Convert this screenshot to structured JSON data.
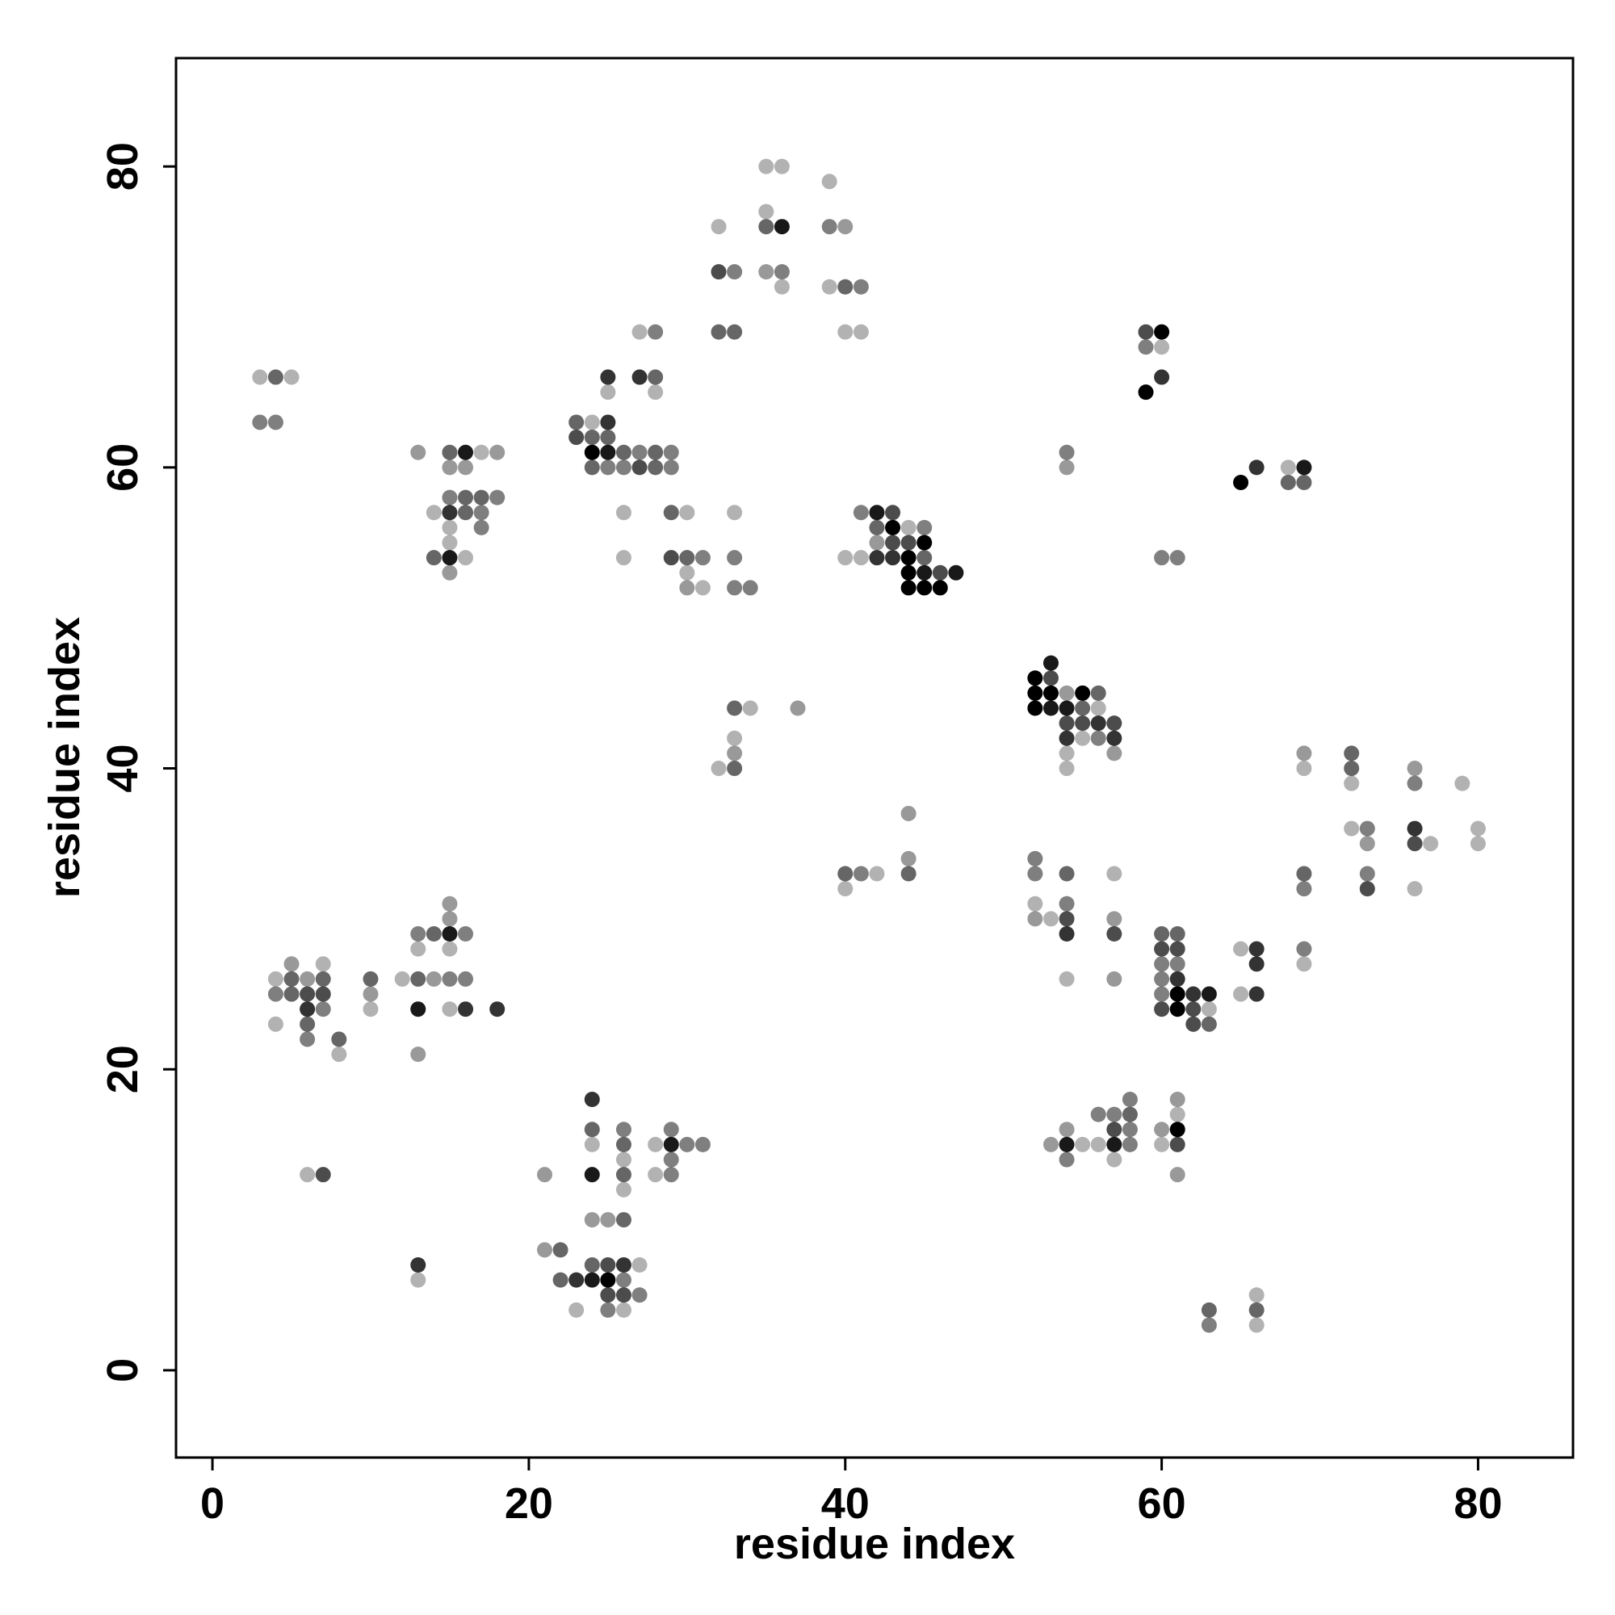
{
  "chart_data": {
    "type": "scatter",
    "title": "",
    "xlabel": "residue index",
    "ylabel": "residue index",
    "xlim": [
      -2.3,
      86
    ],
    "ylim": [
      -5.8,
      87.2
    ],
    "xticks": [
      0,
      20,
      40,
      60,
      80
    ],
    "yticks": [
      0,
      20,
      40,
      60,
      80
    ],
    "grid": false,
    "legend": "none",
    "marker_color": "#000000",
    "points": [
      [
        3,
        66,
        0.3
      ],
      [
        4,
        66,
        0.6
      ],
      [
        5,
        66,
        0.3
      ],
      [
        3,
        63,
        0.5
      ],
      [
        4,
        63,
        0.5
      ],
      [
        13,
        61,
        0.4
      ],
      [
        15,
        61,
        0.6
      ],
      [
        16,
        61,
        0.9
      ],
      [
        17,
        61,
        0.3
      ],
      [
        18,
        61,
        0.4
      ],
      [
        15,
        60,
        0.4
      ],
      [
        16,
        60,
        0.4
      ],
      [
        15,
        58,
        0.5
      ],
      [
        16,
        58,
        0.6
      ],
      [
        17,
        58,
        0.6
      ],
      [
        18,
        58,
        0.5
      ],
      [
        14,
        57,
        0.3
      ],
      [
        15,
        57,
        0.8
      ],
      [
        16,
        57,
        0.6
      ],
      [
        17,
        57,
        0.5
      ],
      [
        15,
        56,
        0.3
      ],
      [
        17,
        56,
        0.5
      ],
      [
        15,
        55,
        0.3
      ],
      [
        14,
        54,
        0.6
      ],
      [
        15,
        54,
        0.9
      ],
      [
        16,
        54,
        0.3
      ],
      [
        15,
        53,
        0.4
      ],
      [
        23,
        63,
        0.6
      ],
      [
        24,
        63,
        0.3
      ],
      [
        25,
        63,
        0.8
      ],
      [
        23,
        62,
        0.7
      ],
      [
        24,
        62,
        0.6
      ],
      [
        25,
        62,
        0.6
      ],
      [
        24,
        61,
        1.0
      ],
      [
        25,
        61,
        0.9
      ],
      [
        26,
        61,
        0.6
      ],
      [
        27,
        61,
        0.5
      ],
      [
        28,
        61,
        0.6
      ],
      [
        29,
        61,
        0.5
      ],
      [
        24,
        60,
        0.6
      ],
      [
        25,
        60,
        0.5
      ],
      [
        26,
        60,
        0.5
      ],
      [
        27,
        60,
        0.7
      ],
      [
        28,
        60,
        0.6
      ],
      [
        29,
        60,
        0.5
      ],
      [
        25,
        66,
        0.8
      ],
      [
        27,
        66,
        0.8
      ],
      [
        28,
        66,
        0.6
      ],
      [
        25,
        65,
        0.3
      ],
      [
        28,
        65,
        0.3
      ],
      [
        27,
        69,
        0.3
      ],
      [
        28,
        69,
        0.5
      ],
      [
        26,
        57,
        0.3
      ],
      [
        29,
        57,
        0.6
      ],
      [
        30,
        57,
        0.3
      ],
      [
        33,
        57,
        0.3
      ],
      [
        26,
        54,
        0.3
      ],
      [
        29,
        54,
        0.7
      ],
      [
        30,
        54,
        0.6
      ],
      [
        31,
        54,
        0.5
      ],
      [
        33,
        54,
        0.5
      ],
      [
        30,
        53,
        0.3
      ],
      [
        30,
        52,
        0.4
      ],
      [
        31,
        52,
        0.3
      ],
      [
        33,
        52,
        0.5
      ],
      [
        34,
        52,
        0.5
      ],
      [
        32,
        76,
        0.3
      ],
      [
        35,
        80,
        0.3
      ],
      [
        36,
        80,
        0.3
      ],
      [
        35,
        77,
        0.3
      ],
      [
        35,
        76,
        0.6
      ],
      [
        36,
        76,
        0.9
      ],
      [
        39,
        79,
        0.3
      ],
      [
        39,
        76,
        0.5
      ],
      [
        40,
        76,
        0.4
      ],
      [
        32,
        73,
        0.7
      ],
      [
        33,
        73,
        0.5
      ],
      [
        35,
        73,
        0.4
      ],
      [
        36,
        73,
        0.5
      ],
      [
        36,
        72,
        0.3
      ],
      [
        39,
        72,
        0.3
      ],
      [
        40,
        72,
        0.6
      ],
      [
        41,
        72,
        0.5
      ],
      [
        32,
        69,
        0.6
      ],
      [
        33,
        69,
        0.6
      ],
      [
        40,
        69,
        0.3
      ],
      [
        41,
        69,
        0.3
      ],
      [
        41,
        57,
        0.5
      ],
      [
        42,
        57,
        0.9
      ],
      [
        43,
        57,
        0.7
      ],
      [
        42,
        56,
        0.6
      ],
      [
        43,
        56,
        1.0
      ],
      [
        44,
        56,
        0.3
      ],
      [
        45,
        56,
        0.5
      ],
      [
        42,
        55,
        0.4
      ],
      [
        43,
        55,
        0.7
      ],
      [
        44,
        55,
        0.7
      ],
      [
        45,
        55,
        1.0
      ],
      [
        40,
        54,
        0.3
      ],
      [
        41,
        54,
        0.3
      ],
      [
        42,
        54,
        0.8
      ],
      [
        43,
        54,
        0.8
      ],
      [
        44,
        54,
        1.0
      ],
      [
        45,
        54,
        0.6
      ],
      [
        44,
        53,
        1.0
      ],
      [
        45,
        53,
        0.9
      ],
      [
        46,
        53,
        0.7
      ],
      [
        47,
        53,
        0.9
      ],
      [
        44,
        52,
        1.0
      ],
      [
        45,
        52,
        1.0
      ],
      [
        46,
        52,
        1.0
      ],
      [
        33,
        44,
        0.6
      ],
      [
        34,
        44,
        0.3
      ],
      [
        37,
        44,
        0.4
      ],
      [
        33,
        42,
        0.3
      ],
      [
        33,
        41,
        0.4
      ],
      [
        32,
        40,
        0.3
      ],
      [
        33,
        40,
        0.6
      ],
      [
        54,
        61,
        0.5
      ],
      [
        54,
        60,
        0.4
      ],
      [
        59,
        69,
        0.7
      ],
      [
        60,
        69,
        1.0
      ],
      [
        59,
        68,
        0.5
      ],
      [
        60,
        68,
        0.3
      ],
      [
        59,
        65,
        1.0
      ],
      [
        60,
        66,
        0.8
      ],
      [
        65,
        59,
        1.0
      ],
      [
        66,
        60,
        0.8
      ],
      [
        68,
        60,
        0.3
      ],
      [
        69,
        60,
        0.9
      ],
      [
        68,
        59,
        0.6
      ],
      [
        69,
        59,
        0.6
      ],
      [
        60,
        54,
        0.5
      ],
      [
        61,
        54,
        0.5
      ],
      [
        53,
        47,
        0.9
      ],
      [
        52,
        46,
        1.0
      ],
      [
        53,
        46,
        0.7
      ],
      [
        52,
        45,
        1.0
      ],
      [
        53,
        45,
        1.0
      ],
      [
        54,
        45,
        0.4
      ],
      [
        55,
        45,
        1.0
      ],
      [
        56,
        45,
        0.6
      ],
      [
        52,
        44,
        1.0
      ],
      [
        53,
        44,
        0.9
      ],
      [
        54,
        44,
        0.9
      ],
      [
        55,
        44,
        0.6
      ],
      [
        56,
        44,
        0.3
      ],
      [
        54,
        43,
        0.7
      ],
      [
        55,
        43,
        0.7
      ],
      [
        56,
        43,
        0.8
      ],
      [
        57,
        43,
        0.7
      ],
      [
        54,
        42,
        0.8
      ],
      [
        55,
        42,
        0.3
      ],
      [
        56,
        42,
        0.5
      ],
      [
        57,
        42,
        0.8
      ],
      [
        54,
        41,
        0.3
      ],
      [
        57,
        41,
        0.4
      ],
      [
        54,
        40,
        0.3
      ],
      [
        69,
        41,
        0.4
      ],
      [
        72,
        41,
        0.6
      ],
      [
        69,
        40,
        0.3
      ],
      [
        72,
        40,
        0.6
      ],
      [
        76,
        40,
        0.4
      ],
      [
        72,
        39,
        0.3
      ],
      [
        76,
        39,
        0.5
      ],
      [
        79,
        39,
        0.3
      ],
      [
        72,
        36,
        0.3
      ],
      [
        73,
        36,
        0.5
      ],
      [
        76,
        36,
        0.8
      ],
      [
        80,
        36,
        0.3
      ],
      [
        73,
        35,
        0.4
      ],
      [
        76,
        35,
        0.7
      ],
      [
        77,
        35,
        0.3
      ],
      [
        80,
        35,
        0.3
      ],
      [
        44,
        37,
        0.4
      ],
      [
        44,
        34,
        0.4
      ],
      [
        40,
        33,
        0.6
      ],
      [
        41,
        33,
        0.5
      ],
      [
        42,
        33,
        0.3
      ],
      [
        44,
        33,
        0.6
      ],
      [
        40,
        32,
        0.3
      ],
      [
        69,
        33,
        0.6
      ],
      [
        73,
        33,
        0.5
      ],
      [
        69,
        32,
        0.5
      ],
      [
        73,
        32,
        0.7
      ],
      [
        76,
        32,
        0.3
      ],
      [
        52,
        34,
        0.5
      ],
      [
        52,
        33,
        0.5
      ],
      [
        54,
        33,
        0.6
      ],
      [
        57,
        33,
        0.3
      ],
      [
        52,
        31,
        0.3
      ],
      [
        54,
        31,
        0.5
      ],
      [
        52,
        30,
        0.4
      ],
      [
        53,
        30,
        0.3
      ],
      [
        54,
        30,
        0.7
      ],
      [
        57,
        30,
        0.4
      ],
      [
        54,
        29,
        0.8
      ],
      [
        57,
        29,
        0.7
      ],
      [
        60,
        29,
        0.6
      ],
      [
        61,
        29,
        0.6
      ],
      [
        60,
        28,
        0.7
      ],
      [
        61,
        28,
        0.7
      ],
      [
        60,
        27,
        0.5
      ],
      [
        61,
        27,
        0.5
      ],
      [
        60,
        26,
        0.5
      ],
      [
        61,
        26,
        0.8
      ],
      [
        60,
        25,
        0.5
      ],
      [
        61,
        25,
        1.0
      ],
      [
        62,
        25,
        0.8
      ],
      [
        63,
        25,
        0.9
      ],
      [
        60,
        24,
        0.7
      ],
      [
        61,
        24,
        1.0
      ],
      [
        62,
        24,
        0.7
      ],
      [
        63,
        24,
        0.3
      ],
      [
        62,
        23,
        0.7
      ],
      [
        63,
        23,
        0.6
      ],
      [
        54,
        26,
        0.3
      ],
      [
        57,
        26,
        0.4
      ],
      [
        65,
        28,
        0.3
      ],
      [
        66,
        28,
        0.8
      ],
      [
        66,
        27,
        0.8
      ],
      [
        65,
        25,
        0.3
      ],
      [
        66,
        25,
        0.8
      ],
      [
        69,
        28,
        0.5
      ],
      [
        69,
        27,
        0.3
      ],
      [
        4,
        26,
        0.3
      ],
      [
        5,
        27,
        0.4
      ],
      [
        7,
        27,
        0.3
      ],
      [
        5,
        26,
        0.6
      ],
      [
        6,
        26,
        0.4
      ],
      [
        7,
        26,
        0.6
      ],
      [
        10,
        26,
        0.6
      ],
      [
        4,
        25,
        0.5
      ],
      [
        5,
        25,
        0.6
      ],
      [
        6,
        25,
        0.7
      ],
      [
        7,
        25,
        0.7
      ],
      [
        10,
        25,
        0.4
      ],
      [
        6,
        24,
        0.8
      ],
      [
        7,
        24,
        0.5
      ],
      [
        10,
        24,
        0.3
      ],
      [
        6,
        23,
        0.6
      ],
      [
        4,
        23,
        0.3
      ],
      [
        6,
        22,
        0.5
      ],
      [
        8,
        22,
        0.6
      ],
      [
        8,
        21,
        0.3
      ],
      [
        15,
        31,
        0.4
      ],
      [
        15,
        30,
        0.4
      ],
      [
        13,
        29,
        0.5
      ],
      [
        14,
        29,
        0.6
      ],
      [
        15,
        29,
        0.9
      ],
      [
        16,
        29,
        0.5
      ],
      [
        13,
        28,
        0.3
      ],
      [
        15,
        28,
        0.3
      ],
      [
        12,
        26,
        0.3
      ],
      [
        13,
        26,
        0.6
      ],
      [
        14,
        26,
        0.4
      ],
      [
        15,
        26,
        0.5
      ],
      [
        16,
        26,
        0.5
      ],
      [
        13,
        24,
        0.9
      ],
      [
        15,
        24,
        0.3
      ],
      [
        16,
        24,
        0.8
      ],
      [
        18,
        24,
        0.8
      ],
      [
        13,
        21,
        0.4
      ],
      [
        6,
        13,
        0.3
      ],
      [
        7,
        13,
        0.7
      ],
      [
        24,
        18,
        0.8
      ],
      [
        24,
        16,
        0.6
      ],
      [
        26,
        16,
        0.5
      ],
      [
        29,
        16,
        0.5
      ],
      [
        24,
        15,
        0.3
      ],
      [
        26,
        15,
        0.6
      ],
      [
        28,
        15,
        0.3
      ],
      [
        29,
        15,
        0.9
      ],
      [
        30,
        15,
        0.5
      ],
      [
        31,
        15,
        0.5
      ],
      [
        26,
        14,
        0.3
      ],
      [
        29,
        14,
        0.5
      ],
      [
        21,
        13,
        0.4
      ],
      [
        24,
        13,
        0.9
      ],
      [
        26,
        13,
        0.6
      ],
      [
        28,
        13,
        0.3
      ],
      [
        29,
        13,
        0.5
      ],
      [
        26,
        12,
        0.3
      ],
      [
        24,
        10,
        0.4
      ],
      [
        25,
        10,
        0.4
      ],
      [
        26,
        10,
        0.6
      ],
      [
        21,
        8,
        0.4
      ],
      [
        22,
        8,
        0.6
      ],
      [
        24,
        7,
        0.6
      ],
      [
        25,
        7,
        0.7
      ],
      [
        26,
        7,
        0.8
      ],
      [
        27,
        7,
        0.3
      ],
      [
        22,
        6,
        0.6
      ],
      [
        23,
        6,
        0.8
      ],
      [
        24,
        6,
        0.9
      ],
      [
        25,
        6,
        1.0
      ],
      [
        26,
        6,
        0.5
      ],
      [
        25,
        5,
        0.7
      ],
      [
        26,
        5,
        0.7
      ],
      [
        27,
        5,
        0.5
      ],
      [
        23,
        4,
        0.3
      ],
      [
        25,
        4,
        0.5
      ],
      [
        26,
        4,
        0.3
      ],
      [
        13,
        7,
        0.8
      ],
      [
        13,
        6,
        0.3
      ],
      [
        54,
        16,
        0.4
      ],
      [
        56,
        17,
        0.5
      ],
      [
        57,
        17,
        0.5
      ],
      [
        58,
        17,
        0.6
      ],
      [
        58,
        18,
        0.5
      ],
      [
        53,
        15,
        0.4
      ],
      [
        54,
        15,
        0.9
      ],
      [
        55,
        15,
        0.3
      ],
      [
        56,
        15,
        0.3
      ],
      [
        57,
        15,
        0.9
      ],
      [
        58,
        15,
        0.5
      ],
      [
        54,
        14,
        0.5
      ],
      [
        57,
        14,
        0.3
      ],
      [
        57,
        16,
        0.7
      ],
      [
        58,
        16,
        0.5
      ],
      [
        61,
        18,
        0.4
      ],
      [
        61,
        17,
        0.3
      ],
      [
        60,
        16,
        0.4
      ],
      [
        61,
        16,
        1.0
      ],
      [
        60,
        15,
        0.3
      ],
      [
        61,
        15,
        0.7
      ],
      [
        61,
        13,
        0.4
      ],
      [
        63,
        4,
        0.6
      ],
      [
        63,
        3,
        0.5
      ],
      [
        66,
        5,
        0.3
      ],
      [
        66,
        4,
        0.6
      ],
      [
        66,
        3,
        0.3
      ]
    ]
  }
}
